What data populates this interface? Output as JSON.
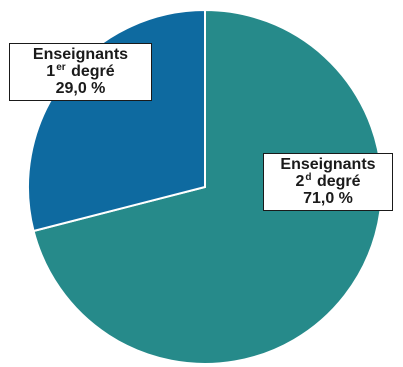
{
  "chart_data": {
    "type": "pie",
    "slices": [
      {
        "name": "Enseignants 2d degré",
        "line1": "Enseignants",
        "line2_main": "2",
        "line2_sup": "d",
        "line2_rest": "degré",
        "value": 71.0,
        "value_label": "71,0 %",
        "color": "#268a8a"
      },
      {
        "name": "Enseignants 1er degré",
        "line1": "Enseignants",
        "line2_main": "1",
        "line2_sup": "er",
        "line2_rest": "degré",
        "value": 29.0,
        "value_label": "29,0 %",
        "color": "#0e6aa0"
      }
    ],
    "start": "top, clockwise",
    "separator_color": "#ffffff"
  }
}
